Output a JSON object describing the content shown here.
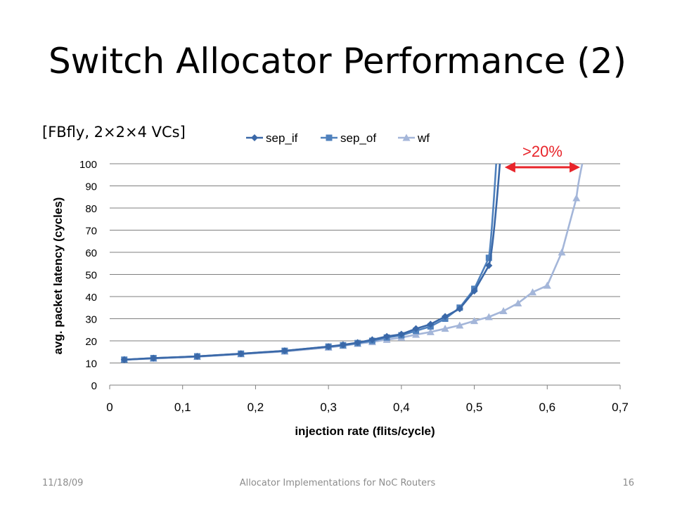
{
  "slide": {
    "title": "Switch Allocator Performance (2)",
    "subtitle": "[FBfly, 2×2×4 VCs]",
    "annotation": ">20%"
  },
  "footer": {
    "date": "11/18/09",
    "center": "Allocator Implementations for NoC Routers",
    "page": "16"
  },
  "colors": {
    "sep_if": "#3a68a8",
    "sep_of": "#4f81bd",
    "wf": "#a4b6d9",
    "annotation": "#e8242a",
    "grid": "#7f7f7f"
  },
  "chart_data": {
    "type": "line",
    "xlabel": "injection rate (flits/cycle)",
    "ylabel": "avg. packet latency (cycles)",
    "xlim": [
      0,
      0.7
    ],
    "ylim": [
      0,
      100
    ],
    "x_ticks": [
      "0",
      "0,1",
      "0,2",
      "0,3",
      "0,4",
      "0,5",
      "0,6",
      "0,7"
    ],
    "y_ticks": [
      "0",
      "10",
      "20",
      "30",
      "40",
      "50",
      "60",
      "70",
      "80",
      "90",
      "100"
    ],
    "grid": true,
    "legend_position": "top",
    "series": [
      {
        "name": "sep_if",
        "marker": "diamond",
        "x": [
          0.02,
          0.06,
          0.12,
          0.18,
          0.24,
          0.3,
          0.32,
          0.34,
          0.36,
          0.38,
          0.4,
          0.42,
          0.44,
          0.46,
          0.48,
          0.5,
          0.52
        ],
        "y": [
          11.5,
          12.2,
          13.0,
          14.2,
          15.5,
          17.4,
          18.2,
          19.2,
          20.5,
          22.0,
          23.0,
          25.5,
          27.5,
          31.0,
          34.5,
          42.5,
          54.0
        ],
        "extends_to": [
          0.535,
          100
        ]
      },
      {
        "name": "sep_of",
        "marker": "square",
        "x": [
          0.02,
          0.06,
          0.12,
          0.18,
          0.24,
          0.3,
          0.32,
          0.34,
          0.36,
          0.38,
          0.4,
          0.42,
          0.44,
          0.46,
          0.48,
          0.5,
          0.52
        ],
        "y": [
          11.5,
          12.2,
          13.0,
          14.2,
          15.5,
          17.4,
          18.0,
          19.0,
          20.0,
          21.5,
          22.5,
          24.5,
          26.5,
          30.0,
          35.0,
          43.5,
          57.5
        ],
        "extends_to": [
          0.53,
          100
        ]
      },
      {
        "name": "wf",
        "marker": "triangle",
        "x": [
          0.02,
          0.06,
          0.12,
          0.18,
          0.24,
          0.3,
          0.32,
          0.34,
          0.36,
          0.38,
          0.4,
          0.42,
          0.44,
          0.46,
          0.48,
          0.5,
          0.52,
          0.54,
          0.56,
          0.58,
          0.6,
          0.62,
          0.64
        ],
        "y": [
          11.5,
          12.0,
          12.8,
          14.0,
          15.2,
          17.0,
          17.8,
          18.7,
          19.5,
          20.5,
          21.5,
          22.8,
          24.0,
          25.5,
          27.0,
          29.0,
          30.8,
          33.5,
          37.0,
          42.0,
          45.0,
          60.0,
          84.5
        ],
        "extends_to": [
          0.648,
          100
        ]
      }
    ]
  }
}
